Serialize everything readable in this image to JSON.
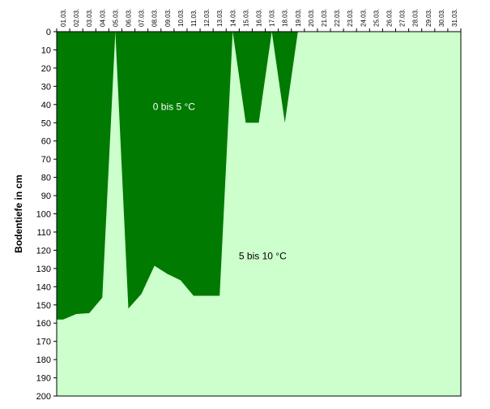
{
  "chart_data": {
    "type": "area",
    "ylabel": "Bodentiefe in cm",
    "ylim": [
      0,
      200
    ],
    "y_inverted": true,
    "y_ticks": [
      0,
      10,
      20,
      30,
      40,
      50,
      60,
      70,
      80,
      90,
      100,
      110,
      120,
      130,
      140,
      150,
      160,
      170,
      180,
      190,
      200
    ],
    "x_ticks": [
      "01.03.",
      "02.03.",
      "03.03.",
      "04.03.",
      "05.03.",
      "06.03.",
      "07.03.",
      "08.03.",
      "09.03.",
      "10.03.",
      "11.03.",
      "12.03.",
      "13.03.",
      "14.03.",
      "15.03.",
      "16.03.",
      "17.03.",
      "18.03.",
      "19.03.",
      "20.03.",
      "21.03.",
      "22.03.",
      "23.03.",
      "24.03.",
      "25.03.",
      "26.03.",
      "27.03.",
      "28.03.",
      "29.03.",
      "30.03.",
      "31.03."
    ],
    "series": [
      {
        "name": "0 bis 5 °C",
        "color": "#007a00",
        "depth_boundary_cm": [
          [
            1,
            158
          ],
          [
            2,
            155
          ],
          [
            3,
            154.5
          ],
          [
            4,
            146
          ],
          [
            5,
            0
          ],
          [
            6,
            152
          ],
          [
            7,
            144
          ],
          [
            8,
            128.5
          ],
          [
            9,
            133
          ],
          [
            10,
            136.5
          ],
          [
            11,
            145
          ],
          [
            12,
            145
          ],
          [
            13,
            145
          ],
          [
            14,
            0
          ],
          [
            15,
            50
          ],
          [
            16,
            50
          ],
          [
            17,
            0
          ],
          [
            18,
            50
          ],
          [
            19,
            0
          ],
          [
            20,
            0
          ],
          [
            21,
            0
          ],
          [
            22,
            0
          ],
          [
            23,
            0
          ],
          [
            24,
            0
          ],
          [
            25,
            0
          ],
          [
            26,
            0
          ],
          [
            27,
            0
          ],
          [
            28,
            0
          ],
          [
            29,
            0
          ],
          [
            30,
            0
          ],
          [
            31,
            0
          ]
        ]
      },
      {
        "name": "5 bis 10 °C",
        "color": "#ccffcc"
      }
    ],
    "annotations": [
      {
        "text": "0 bis 5 °C",
        "x": 9.5,
        "y": 43,
        "color": "#ffffff"
      },
      {
        "text": "5 bis 10 °C",
        "x": 16.3,
        "y": 125,
        "color": "#000000"
      }
    ]
  }
}
